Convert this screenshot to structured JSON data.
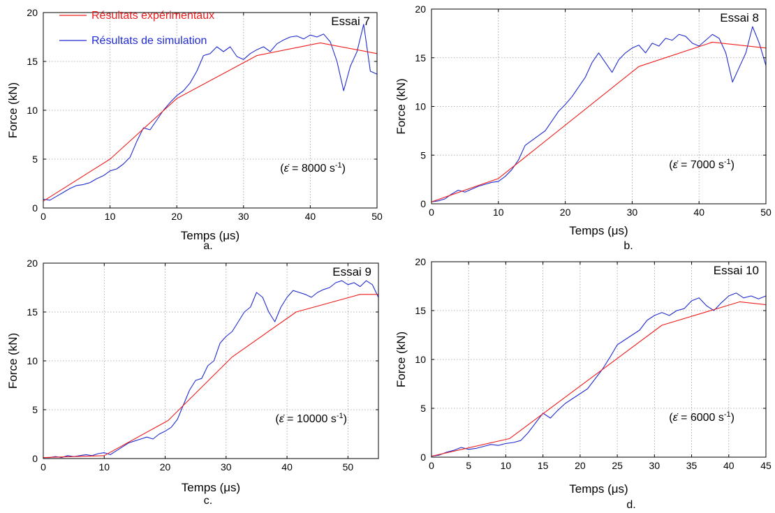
{
  "legend": {
    "experimental": "Résultats expérimentaux",
    "simulation": "Résultats de simulation"
  },
  "colors": {
    "experimental": "#ee1c1c",
    "simulation": "#1f2bd0",
    "grid": "#9a9a9a",
    "axis": "#000000"
  },
  "chart_data": [
    {
      "type": "line",
      "panel_letter": "a.",
      "test_label": "Essai 7",
      "annotation": {
        "pre": "(",
        "symbol": "ε̇",
        "value": " = 8000 s",
        "exp": "-1",
        "post": ")"
      },
      "xlabel": "Temps (μs)",
      "ylabel": "Force (kN)",
      "xlim": [
        0,
        50
      ],
      "ylim": [
        0,
        20
      ],
      "xticks": [
        0,
        10,
        20,
        30,
        40,
        50
      ],
      "yticks": [
        0,
        5,
        10,
        15,
        20
      ],
      "grid": true,
      "legend_position": "top-left",
      "series": [
        {
          "name": "Résultats expérimentaux",
          "key": "experimental",
          "x": [
            0,
            10,
            20,
            32,
            41.5,
            50
          ],
          "y": [
            0.7,
            5.0,
            11.2,
            15.6,
            16.9,
            15.8
          ]
        },
        {
          "name": "Résultats de simulation",
          "key": "simulation",
          "x": [
            0,
            1,
            2,
            3,
            4,
            5,
            6,
            7,
            8,
            9,
            10,
            11,
            12,
            13,
            14,
            15,
            16,
            17,
            18,
            19,
            20,
            21,
            22,
            23,
            24,
            25,
            26,
            27,
            28,
            29,
            30,
            31,
            32,
            33,
            34,
            35,
            36,
            37,
            38,
            39,
            40,
            41,
            42,
            43,
            44,
            45,
            46,
            47,
            48,
            49,
            50
          ],
          "y": [
            0.9,
            0.8,
            1.2,
            1.6,
            2.0,
            2.3,
            2.4,
            2.6,
            3.0,
            3.3,
            3.8,
            4.0,
            4.5,
            5.2,
            6.8,
            8.2,
            8.0,
            9.0,
            10.0,
            10.8,
            11.5,
            12.0,
            12.8,
            14.0,
            15.6,
            15.8,
            16.5,
            16.0,
            16.5,
            15.5,
            15.2,
            15.8,
            16.2,
            16.5,
            16.0,
            16.8,
            17.2,
            17.5,
            17.6,
            17.3,
            17.7,
            17.5,
            17.8,
            17.0,
            15.0,
            12.0,
            14.5,
            16.0,
            18.8,
            14.0,
            13.7
          ]
        }
      ]
    },
    {
      "type": "line",
      "panel_letter": "b.",
      "test_label": "Essai 8",
      "annotation": {
        "pre": "(",
        "symbol": "ε̇",
        "value": " = 7000 s",
        "exp": "-1",
        "post": ")"
      },
      "xlabel": "Temps (μs)",
      "ylabel": "Force (kN)",
      "xlim": [
        0,
        50
      ],
      "ylim": [
        0,
        20
      ],
      "xticks": [
        0,
        10,
        20,
        30,
        40,
        50
      ],
      "yticks": [
        0,
        5,
        10,
        15,
        20
      ],
      "grid": true,
      "series": [
        {
          "name": "Résultats expérimentaux",
          "key": "experimental",
          "x": [
            0,
            10,
            31,
            42,
            50
          ],
          "y": [
            0.2,
            2.6,
            14.1,
            16.6,
            16.0
          ]
        },
        {
          "name": "Résultats de simulation",
          "key": "simulation",
          "x": [
            0,
            1,
            2,
            3,
            4,
            5,
            6,
            7,
            8,
            9,
            10,
            11,
            12,
            13,
            14,
            15,
            16,
            17,
            18,
            19,
            20,
            21,
            22,
            23,
            24,
            25,
            26,
            27,
            28,
            29,
            30,
            31,
            32,
            33,
            34,
            35,
            36,
            37,
            38,
            39,
            40,
            41,
            42,
            43,
            44,
            45,
            46,
            47,
            48,
            49,
            50
          ],
          "y": [
            0.2,
            0.3,
            0.5,
            1.0,
            1.4,
            1.2,
            1.5,
            1.8,
            2.0,
            2.2,
            2.3,
            2.8,
            3.5,
            4.5,
            6.0,
            6.5,
            7.0,
            7.5,
            8.5,
            9.5,
            10.2,
            11.0,
            12.0,
            13.0,
            14.5,
            15.5,
            14.5,
            13.5,
            14.8,
            15.5,
            16.0,
            16.3,
            15.5,
            16.5,
            16.2,
            17.0,
            16.8,
            17.4,
            17.2,
            16.5,
            16.2,
            16.8,
            17.4,
            17.0,
            15.5,
            12.5,
            14.0,
            15.5,
            18.2,
            16.5,
            14.2
          ]
        }
      ]
    },
    {
      "type": "line",
      "panel_letter": "c.",
      "test_label": "Essai  9",
      "annotation": {
        "pre": "(",
        "symbol": "ε̇",
        "value": " = 10000 s",
        "exp": "-1",
        "post": ")"
      },
      "xlabel": "Temps (μs)",
      "ylabel": "Force (kN)",
      "xlim": [
        0,
        55
      ],
      "ylim": [
        0,
        20
      ],
      "xticks": [
        0,
        10,
        20,
        30,
        40,
        50
      ],
      "yticks": [
        0,
        5,
        10,
        15,
        20
      ],
      "grid": true,
      "series": [
        {
          "name": "Résultats expérimentaux",
          "key": "experimental",
          "x": [
            0,
            10,
            20.5,
            31,
            41.5,
            52,
            55
          ],
          "y": [
            0.1,
            0.3,
            3.9,
            10.4,
            15.0,
            16.8,
            16.8
          ]
        },
        {
          "name": "Résultats de simulation",
          "key": "simulation",
          "x": [
            0,
            1,
            2,
            3,
            4,
            5,
            6,
            7,
            8,
            9,
            10,
            11,
            12,
            13,
            14,
            15,
            16,
            17,
            18,
            19,
            20,
            21,
            22,
            23,
            24,
            25,
            26,
            27,
            28,
            29,
            30,
            31,
            32,
            33,
            34,
            35,
            36,
            37,
            38,
            39,
            40,
            41,
            42,
            43,
            44,
            45,
            46,
            47,
            48,
            49,
            50,
            51,
            52,
            53,
            54,
            55
          ],
          "y": [
            0.1,
            0.1,
            0.2,
            0.1,
            0.3,
            0.2,
            0.3,
            0.4,
            0.3,
            0.5,
            0.6,
            0.4,
            0.8,
            1.2,
            1.6,
            1.8,
            2.0,
            2.2,
            2.0,
            2.5,
            2.8,
            3.2,
            4.0,
            5.5,
            7.0,
            8.0,
            8.2,
            9.5,
            10.0,
            11.8,
            12.5,
            13.0,
            14.0,
            15.0,
            15.5,
            17.0,
            16.5,
            15.0,
            14.0,
            15.5,
            16.5,
            17.2,
            17.0,
            16.8,
            16.5,
            17.0,
            17.3,
            17.5,
            18.0,
            18.2,
            17.8,
            18.0,
            17.6,
            18.2,
            17.8,
            16.5
          ]
        }
      ]
    },
    {
      "type": "line",
      "panel_letter": "d.",
      "test_label": "Essai 10",
      "annotation": {
        "pre": "(",
        "symbol": "ε̇",
        "value": " = 6000 s",
        "exp": "-1",
        "post": ")"
      },
      "xlabel": "Temps (μs)",
      "ylabel": "Force (kN)",
      "xlim": [
        0,
        45
      ],
      "ylim": [
        0,
        20
      ],
      "xticks": [
        0,
        5,
        10,
        15,
        20,
        25,
        30,
        35,
        40,
        45
      ],
      "yticks": [
        0,
        5,
        10,
        15,
        20
      ],
      "grid": true,
      "series": [
        {
          "name": "Résultats expérimentaux",
          "key": "experimental",
          "x": [
            0,
            10.5,
            31,
            41.5,
            45
          ],
          "y": [
            0.1,
            1.9,
            13.5,
            15.9,
            15.6
          ]
        },
        {
          "name": "Résultats de simulation",
          "key": "simulation",
          "x": [
            0,
            1,
            2,
            3,
            4,
            5,
            6,
            7,
            8,
            9,
            10,
            11,
            12,
            13,
            14,
            15,
            16,
            17,
            18,
            19,
            20,
            21,
            22,
            23,
            24,
            25,
            26,
            27,
            28,
            29,
            30,
            31,
            32,
            33,
            34,
            35,
            36,
            37,
            38,
            39,
            40,
            41,
            42,
            43,
            44,
            45
          ],
          "y": [
            0.1,
            0.2,
            0.5,
            0.7,
            1.0,
            0.8,
            0.9,
            1.1,
            1.3,
            1.2,
            1.4,
            1.5,
            1.7,
            2.5,
            3.5,
            4.5,
            4.0,
            4.8,
            5.5,
            6.0,
            6.5,
            7.0,
            8.0,
            9.0,
            10.2,
            11.5,
            12.0,
            12.5,
            13.0,
            14.0,
            14.5,
            14.8,
            14.5,
            15.0,
            15.2,
            16.0,
            16.3,
            15.5,
            15.0,
            15.8,
            16.5,
            16.8,
            16.3,
            16.5,
            16.2,
            16.5
          ]
        }
      ]
    }
  ]
}
